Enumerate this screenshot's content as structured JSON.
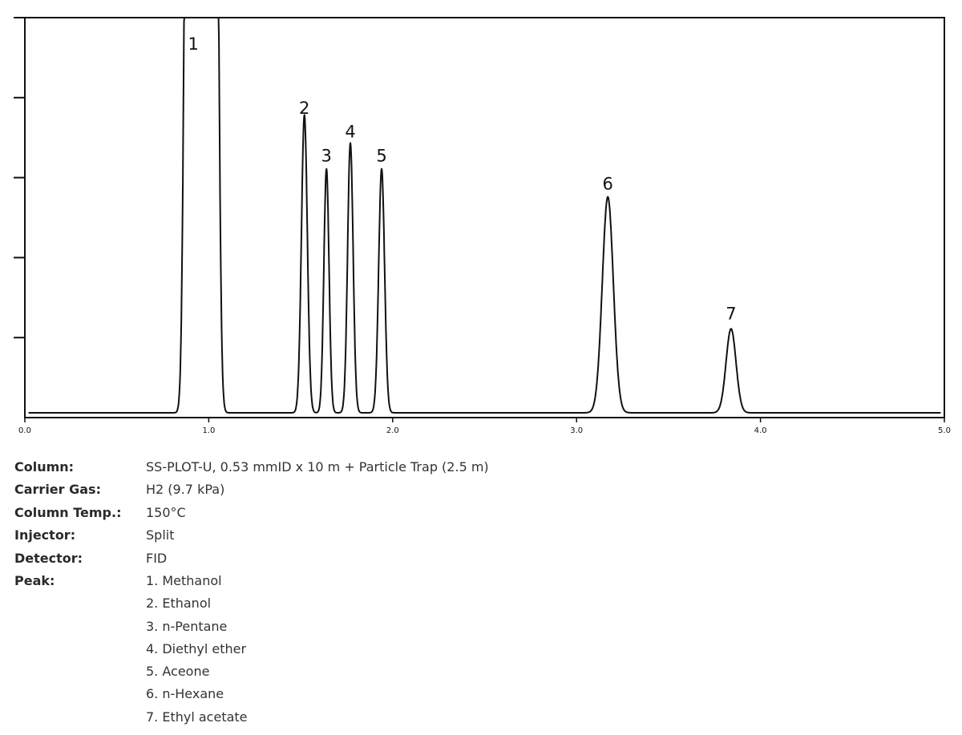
{
  "chart_data": {
    "type": "line",
    "title": "",
    "xlabel": "",
    "ylabel": "",
    "xlim": [
      0.0,
      5.0
    ],
    "ylim": [
      0,
      100
    ],
    "x_ticks": [
      "0.0",
      "1.0",
      "2.0",
      "3.0",
      "4.0",
      "5.0"
    ],
    "y_ticks_count": 5,
    "grid": false,
    "baseline": 1.2,
    "peaks": [
      {
        "label": "1",
        "x": 0.96,
        "height": 100,
        "width": 0.055,
        "flat_top": true
      },
      {
        "label": "2",
        "x": 1.52,
        "height": 74.5,
        "width": 0.016
      },
      {
        "label": "3",
        "x": 1.64,
        "height": 61,
        "width": 0.014
      },
      {
        "label": "4",
        "x": 1.77,
        "height": 67.5,
        "width": 0.015
      },
      {
        "label": "5",
        "x": 1.94,
        "height": 61,
        "width": 0.016
      },
      {
        "label": "6",
        "x": 3.17,
        "height": 54,
        "width": 0.03
      },
      {
        "label": "7",
        "x": 3.84,
        "height": 21,
        "width": 0.027
      }
    ],
    "peak_label_values": [
      {
        "label": "1",
        "x": 0.96,
        "y": 92
      },
      {
        "label": "2",
        "x": 1.52,
        "y": 76
      },
      {
        "label": "3",
        "x": 1.64,
        "y": 64
      },
      {
        "label": "4",
        "x": 1.77,
        "y": 70
      },
      {
        "label": "5",
        "x": 1.94,
        "y": 64
      },
      {
        "label": "6",
        "x": 3.17,
        "y": 57
      },
      {
        "label": "7",
        "x": 3.84,
        "y": 24.5
      }
    ]
  },
  "info": {
    "column_label": "Column:",
    "column_value": "SS-PLOT-U, 0.53 mmID x 10 m + Particle Trap (2.5 m)",
    "carrier_label": "Carrier Gas:",
    "carrier_value": "H2 (9.7 kPa)",
    "temp_label": "Column Temp.:",
    "temp_value": "150°C",
    "injector_label": "Injector:",
    "injector_value": "Split",
    "detector_label": "Detector:",
    "detector_value": "FID",
    "peak_label": "Peak:",
    "peaks": [
      "1. Methanol",
      "2. Ethanol",
      "3. n-Pentane",
      "4. Diethyl ether",
      "5. Aceone",
      "6. n-Hexane",
      "7. Ethyl acetate"
    ]
  }
}
